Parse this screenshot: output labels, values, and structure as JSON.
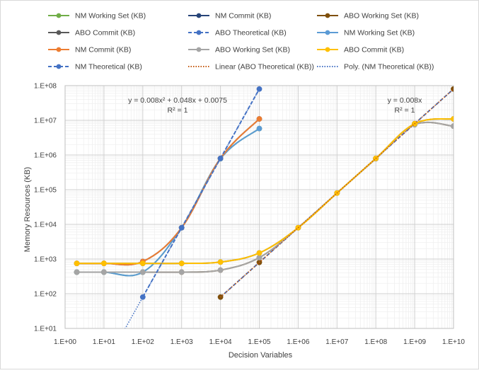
{
  "chart_data": {
    "type": "line",
    "title": "",
    "xlabel": "Decision Variables",
    "ylabel": "Memory Resources (KB)",
    "x_scale": "log",
    "y_scale": "log",
    "xlim": [
      1,
      10000000000
    ],
    "ylim": [
      10,
      100000000
    ],
    "grid": true,
    "legend_position": "top",
    "x_ticks": [
      "1.E+00",
      "1.E+01",
      "1.E+02",
      "1.E+03",
      "1.E+04",
      "1.E+05",
      "1.E+06",
      "1.E+07",
      "1.E+08",
      "1.E+09",
      "1.E+10"
    ],
    "y_ticks": [
      "1.E+01",
      "1.E+02",
      "1.E+03",
      "1.E+04",
      "1.E+05",
      "1.E+06",
      "1.E+07",
      "1.E+08"
    ],
    "series": [
      {
        "name": "NM Working Set (KB)",
        "color": "#70ad47",
        "style": "solid",
        "x": [
          2,
          10,
          100,
          1000,
          10000,
          100000
        ],
        "y": [
          420,
          420,
          420,
          8000,
          780000,
          5800000
        ]
      },
      {
        "name": "NM Commit (KB)",
        "color": "#264478",
        "style": "solid",
        "x": [
          2,
          10,
          100,
          1000,
          10000,
          100000
        ],
        "y": [
          750,
          750,
          850,
          8000,
          800000,
          11000000
        ]
      },
      {
        "name": "ABO Working Set (KB)",
        "color": "#7f4f0b",
        "style": "solid",
        "x": [
          2,
          10,
          100,
          1000,
          10000,
          100000,
          1000000,
          10000000,
          100000000,
          1000000000,
          10000000000
        ],
        "y": [
          420,
          420,
          420,
          420,
          480,
          1100,
          8000,
          80000,
          780000,
          7500000,
          6800000
        ]
      },
      {
        "name": "ABO Commit (KB)",
        "color": "#595959",
        "style": "solid",
        "x": [
          2,
          10,
          100,
          1000,
          10000,
          100000,
          1000000,
          10000000,
          100000000,
          1000000000,
          10000000000
        ],
        "y": [
          750,
          750,
          750,
          750,
          820,
          1500,
          8000,
          80000,
          800000,
          8000000,
          11000000
        ]
      },
      {
        "name": "ABO Theoretical  (KB)",
        "color": "#4472c4",
        "style": "dashed",
        "x": [
          10000,
          100000,
          1000000,
          10000000,
          100000000,
          1000000000,
          10000000000
        ],
        "y": [
          80,
          800,
          8000,
          80000,
          800000,
          8000000,
          80000000
        ]
      },
      {
        "name": "NM Working Set (KB)",
        "color": "#5b9bd5",
        "style": "solid",
        "x": [
          2,
          10,
          100,
          1000,
          10000,
          100000
        ],
        "y": [
          420,
          420,
          420,
          8000,
          780000,
          5800000
        ]
      },
      {
        "name": "NM Commit (KB)",
        "color": "#ed7d31",
        "style": "solid",
        "x": [
          2,
          10,
          100,
          1000,
          10000,
          100000
        ],
        "y": [
          750,
          750,
          850,
          8000,
          800000,
          11000000
        ]
      },
      {
        "name": "ABO Working Set (KB)",
        "color": "#a5a5a5",
        "style": "solid",
        "x": [
          2,
          10,
          100,
          1000,
          10000,
          100000,
          1000000,
          10000000,
          100000000,
          1000000000,
          10000000000
        ],
        "y": [
          420,
          420,
          420,
          420,
          480,
          1100,
          8000,
          80000,
          780000,
          7500000,
          6800000
        ]
      },
      {
        "name": "ABO Commit (KB)",
        "color": "#ffc000",
        "style": "solid",
        "x": [
          2,
          10,
          100,
          1000,
          10000,
          100000,
          1000000,
          10000000,
          100000000,
          1000000000,
          10000000000
        ],
        "y": [
          750,
          750,
          750,
          750,
          820,
          1500,
          8000,
          80000,
          800000,
          8000000,
          11000000
        ]
      },
      {
        "name": "NM Theoretical  (KB)",
        "color": "#4472c4",
        "style": "dashed",
        "x": [
          100,
          1000,
          10000,
          100000
        ],
        "y": [
          80,
          8000,
          800000,
          80000000
        ]
      },
      {
        "name": "Linear (ABO Theoretical  (KB))",
        "color": "#c55a11",
        "style": "dotted",
        "x": [
          10000,
          10000000000
        ],
        "y": [
          80,
          80000000
        ]
      },
      {
        "name": "Poly. (NM Theoretical  (KB))",
        "color": "#4472c4",
        "style": "dotted",
        "x": [
          30,
          100000
        ],
        "y": [
          7.2,
          80000000
        ]
      }
    ],
    "annotations": [
      {
        "line1": "y = 0.008x² + 0.048x + 0.0075",
        "line2": "R² = 1"
      },
      {
        "line1": "y = 0.008x",
        "line2": "R² = 1"
      }
    ]
  }
}
